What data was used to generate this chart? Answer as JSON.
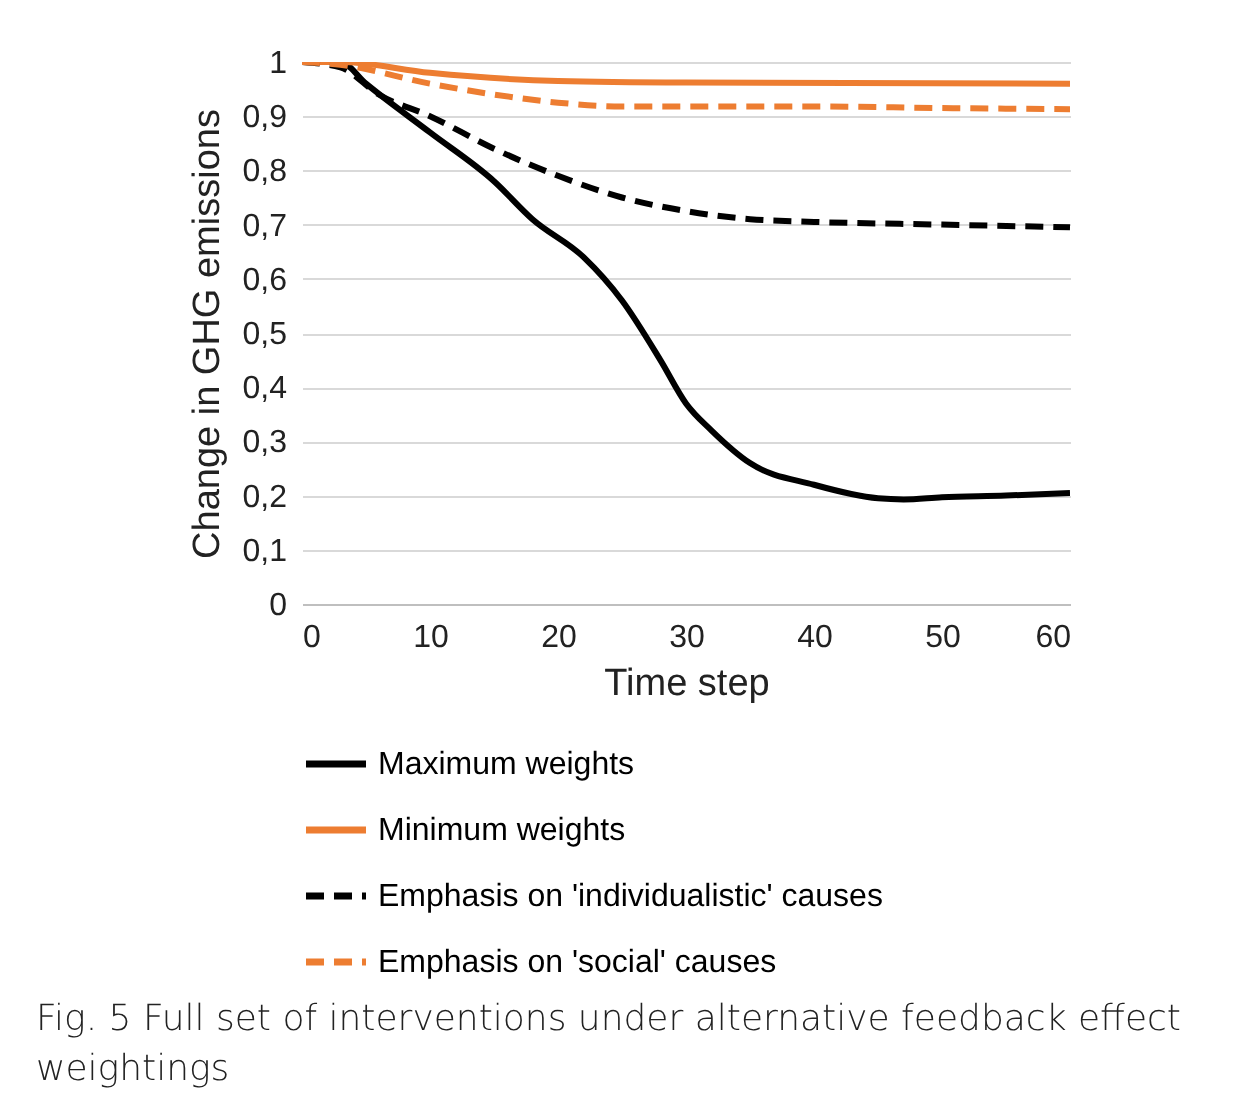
{
  "chart_data": {
    "type": "line",
    "xlabel": "Time step",
    "ylabel": "Change in GHG emissions",
    "annotations": [
      "Fig. 5 Full set of interventions under alternative feedback effect weightings"
    ],
    "xlim": [
      0,
      60
    ],
    "xticks": [
      0,
      10,
      20,
      30,
      40,
      50,
      60
    ],
    "ylim": [
      0,
      1
    ],
    "yticks": [
      0,
      {
        "value": 0.1,
        "label": "0,1"
      },
      {
        "value": 0.2,
        "label": "0,2"
      },
      {
        "value": 0.3,
        "label": "0,3"
      },
      {
        "value": 0.4,
        "label": "0,4"
      },
      {
        "value": 0.5,
        "label": "0,5"
      },
      {
        "value": 0.6,
        "label": "0,6"
      },
      {
        "value": 0.7,
        "label": "0,7"
      },
      {
        "value": 0.8,
        "label": "0,8"
      },
      {
        "value": 0.9,
        "label": "0,9"
      },
      1
    ],
    "grid": "y",
    "legend": "bottom",
    "marker": "none",
    "series": [
      {
        "name": "Maximum weights",
        "color": "#000000",
        "line_style": "solid",
        "x": [
          0,
          3,
          5,
          10,
          15,
          18,
          22,
          25,
          28,
          30,
          32,
          35,
          40,
          45,
          47,
          50,
          55,
          60
        ],
        "values": [
          1,
          1,
          0.96,
          0.87,
          0.78,
          0.71,
          0.64,
          0.56,
          0.45,
          0.37,
          0.32,
          0.26,
          0.22,
          0.195,
          0.193,
          0.197,
          0.2,
          0.205
        ]
      },
      {
        "name": "Minimum weights",
        "color": "#ed7d31",
        "line_style": "solid",
        "x": [
          0,
          3,
          10,
          20,
          30,
          60
        ],
        "values": [
          1,
          1,
          0.98,
          0.965,
          0.962,
          0.96
        ]
      },
      {
        "name": "Emphasis on 'individualistic' causes",
        "color": "#000000",
        "line_style": "dashed",
        "x": [
          0,
          3,
          6,
          10,
          15,
          20,
          25,
          30,
          35,
          40,
          50,
          60
        ],
        "values": [
          1,
          0.99,
          0.94,
          0.9,
          0.84,
          0.79,
          0.75,
          0.725,
          0.71,
          0.705,
          0.7,
          0.695
        ]
      },
      {
        "name": "Emphasis on 'social' causes",
        "color": "#ed7d31",
        "line_style": "dashed",
        "x": [
          0,
          3,
          10,
          15,
          20,
          25,
          30,
          40,
          50,
          60
        ],
        "values": [
          1,
          0.995,
          0.96,
          0.94,
          0.925,
          0.918,
          0.918,
          0.918,
          0.915,
          0.913
        ]
      }
    ]
  }
}
